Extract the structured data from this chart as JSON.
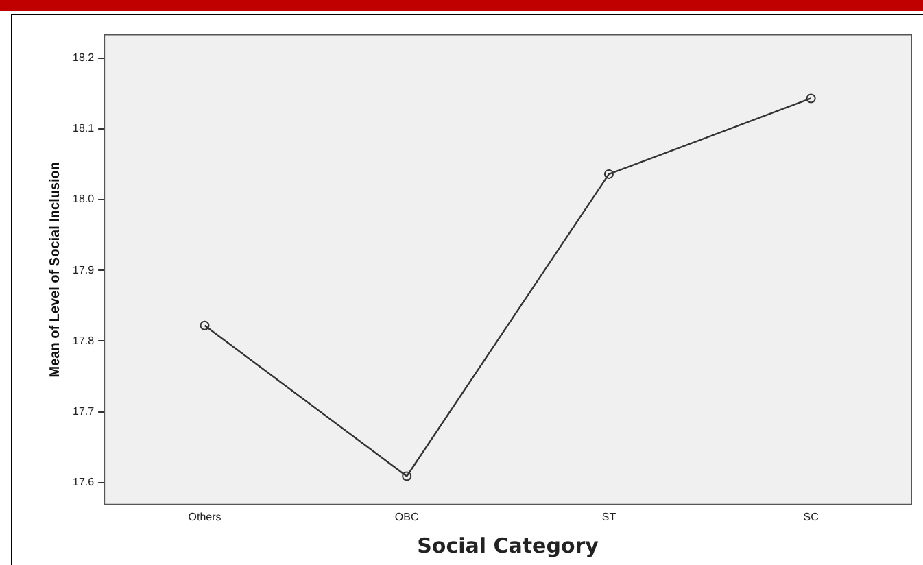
{
  "chart_data": {
    "type": "line",
    "xlabel": "Social Category",
    "ylabel": "Mean of Level of Social Inclusion",
    "categories": [
      "Others",
      "OBC",
      "ST",
      "SC"
    ],
    "series": [
      {
        "color": "#333333",
        "values": [
          17.822,
          17.609,
          18.036,
          18.143
        ]
      }
    ],
    "ylim": [
      17.568,
      18.234
    ],
    "yticks": [
      17.6,
      17.7,
      17.8,
      17.9,
      {
        "value": 18.0,
        "label": "18.0"
      },
      18.1,
      18.2
    ],
    "marker": "circle",
    "line_style": "solid",
    "grid": false,
    "legend": false
  }
}
